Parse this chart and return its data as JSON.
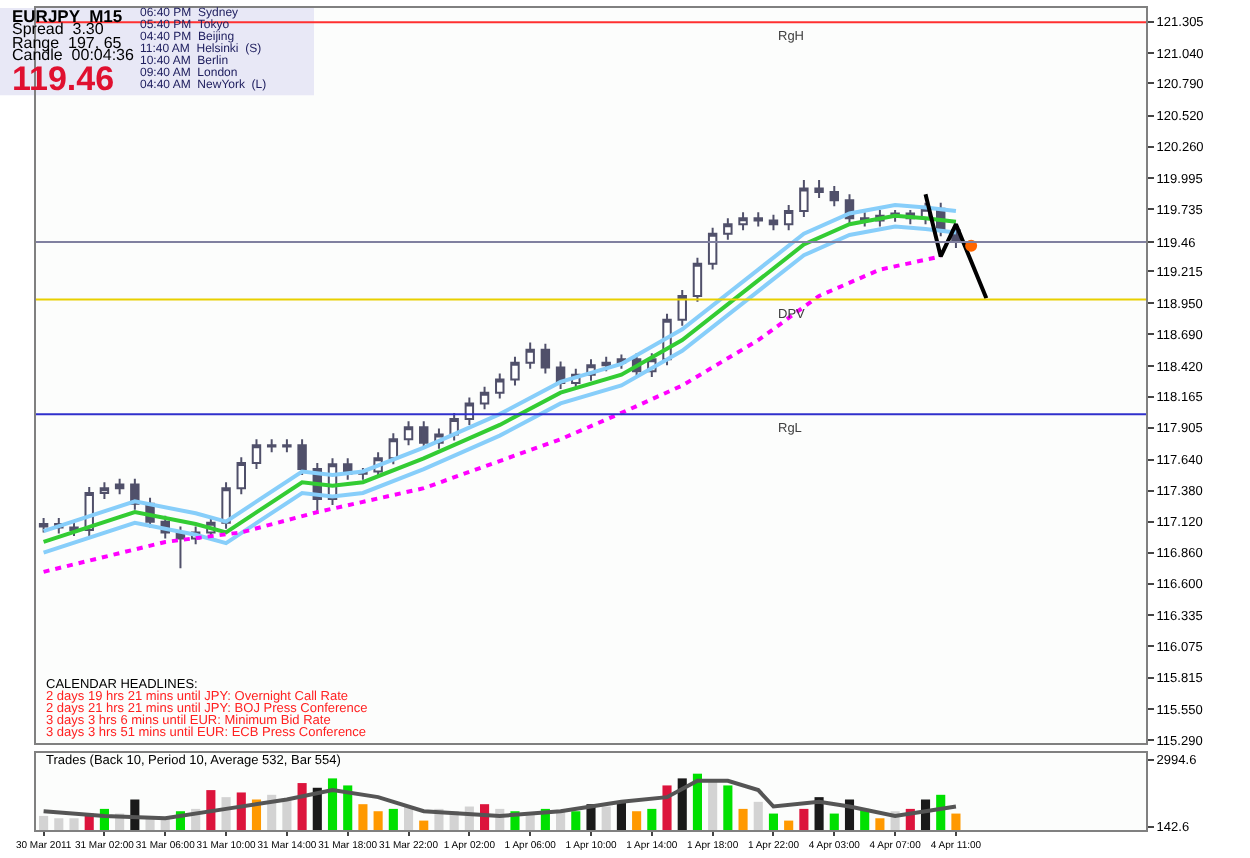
{
  "chart_data": [
    {
      "type": "candlestick",
      "title": "EURJPY  M15",
      "categories": [
        null,
        null,
        null,
        null,
        null,
        null,
        null,
        null,
        null,
        null,
        null,
        null,
        null,
        null,
        null,
        null,
        null,
        null,
        null,
        null,
        null,
        null,
        null,
        null,
        null,
        null,
        null,
        null,
        null,
        null,
        null,
        null,
        null,
        null,
        null,
        null,
        null,
        null,
        null,
        null,
        null,
        null,
        null,
        null,
        null,
        null,
        null,
        null,
        null,
        null,
        null,
        null,
        null,
        null,
        null,
        null,
        null,
        null,
        null,
        null,
        null,
        null,
        null,
        null,
        null,
        null,
        null,
        null,
        null,
        null,
        null,
        null,
        null
      ],
      "ohlc": [
        [
          117.08,
          117.15,
          117.03,
          117.1
        ],
        [
          117.1,
          117.15,
          117.02,
          117.07
        ],
        [
          117.07,
          117.12,
          117.0,
          117.05
        ],
        [
          117.05,
          117.41,
          117.0,
          117.36
        ],
        [
          117.36,
          117.45,
          117.31,
          117.4
        ],
        [
          117.4,
          117.48,
          117.35,
          117.43
        ],
        [
          117.43,
          117.48,
          117.22,
          117.27
        ],
        [
          117.27,
          117.32,
          117.07,
          117.12
        ],
        [
          117.12,
          117.17,
          116.98,
          117.03
        ],
        [
          117.03,
          117.08,
          116.73,
          116.98
        ],
        [
          116.98,
          117.08,
          116.93,
          117.03
        ],
        [
          117.03,
          117.16,
          116.98,
          117.11
        ],
        [
          117.11,
          117.45,
          117.06,
          117.4
        ],
        [
          117.4,
          117.66,
          117.35,
          117.61
        ],
        [
          117.61,
          117.81,
          117.56,
          117.76
        ],
        [
          117.76,
          117.81,
          117.7,
          117.75
        ],
        [
          117.75,
          117.81,
          117.7,
          117.76
        ],
        [
          117.76,
          117.81,
          117.51,
          117.56
        ],
        [
          117.56,
          117.61,
          117.2,
          117.31
        ],
        [
          117.31,
          117.65,
          117.26,
          117.6
        ],
        [
          117.6,
          117.65,
          117.47,
          117.52
        ],
        [
          117.52,
          117.57,
          117.47,
          117.54
        ],
        [
          117.54,
          117.7,
          117.49,
          117.65
        ],
        [
          117.65,
          117.86,
          117.6,
          117.81
        ],
        [
          117.81,
          117.96,
          117.76,
          117.91
        ],
        [
          117.91,
          117.96,
          117.73,
          117.78
        ],
        [
          117.78,
          117.9,
          117.73,
          117.85
        ],
        [
          117.85,
          118.03,
          117.8,
          117.98
        ],
        [
          117.98,
          118.16,
          117.93,
          118.11
        ],
        [
          118.11,
          118.25,
          118.06,
          118.2
        ],
        [
          118.2,
          118.36,
          118.15,
          118.31
        ],
        [
          118.31,
          118.5,
          118.26,
          118.45
        ],
        [
          118.45,
          118.62,
          118.4,
          118.56
        ],
        [
          118.56,
          118.61,
          118.36,
          118.41
        ],
        [
          118.41,
          118.46,
          118.23,
          118.28
        ],
        [
          118.28,
          118.4,
          118.23,
          118.35
        ],
        [
          118.35,
          118.48,
          118.3,
          118.43
        ],
        [
          118.43,
          118.5,
          118.38,
          118.45
        ],
        [
          118.45,
          118.52,
          118.4,
          118.48
        ],
        [
          118.48,
          118.53,
          118.33,
          118.38
        ],
        [
          118.38,
          118.53,
          118.33,
          118.48
        ],
        [
          118.48,
          118.86,
          118.43,
          118.81
        ],
        [
          118.81,
          119.06,
          118.76,
          119.01
        ],
        [
          119.01,
          119.33,
          118.96,
          119.28
        ],
        [
          119.28,
          119.58,
          119.23,
          119.53
        ],
        [
          119.53,
          119.66,
          119.48,
          119.61
        ],
        [
          119.61,
          119.71,
          119.56,
          119.66
        ],
        [
          119.66,
          119.71,
          119.59,
          119.64
        ],
        [
          119.64,
          119.69,
          119.56,
          119.61
        ],
        [
          119.61,
          119.77,
          119.56,
          119.72
        ],
        [
          119.72,
          119.98,
          119.67,
          119.91
        ],
        [
          119.91,
          119.98,
          119.83,
          119.88
        ],
        [
          119.88,
          119.93,
          119.76,
          119.81
        ],
        [
          119.81,
          119.86,
          119.61,
          119.66
        ],
        [
          119.66,
          119.71,
          119.59,
          119.64
        ],
        [
          119.64,
          119.73,
          119.59,
          119.68
        ],
        [
          119.68,
          119.73,
          119.63,
          119.7
        ],
        [
          119.7,
          119.73,
          119.61,
          119.66
        ],
        [
          119.66,
          119.79,
          119.61,
          119.74
        ],
        [
          119.74,
          119.79,
          119.51,
          119.56
        ],
        [
          119.56,
          119.61,
          119.41,
          119.46
        ],
        null,
        null,
        null,
        null,
        null,
        null,
        null,
        null,
        null,
        null,
        null,
        null
      ],
      "series": [
        {
          "type": "line",
          "color": "#33cc33",
          "values": [
            116.95,
            null,
            null,
            null,
            null,
            null,
            117.2,
            null,
            null,
            null,
            117.1,
            null,
            117.03,
            null,
            null,
            null,
            null,
            117.45,
            null,
            117.42,
            null,
            117.45,
            null,
            null,
            null,
            117.65,
            null,
            null,
            null,
            null,
            117.93,
            null,
            null,
            null,
            118.2,
            null,
            null,
            null,
            118.35,
            null,
            null,
            null,
            118.64,
            null,
            null,
            null,
            null,
            119.14,
            null,
            null,
            119.44,
            null,
            null,
            119.61,
            null,
            null,
            119.68,
            null,
            119.66,
            null,
            119.63,
            null,
            null,
            null,
            null,
            null,
            null,
            null,
            null,
            null,
            null,
            null,
            null
          ]
        },
        {
          "type": "line",
          "color": "#87cefa",
          "values": [
            117.04,
            null,
            null,
            null,
            null,
            null,
            117.29,
            null,
            null,
            null,
            117.19,
            null,
            117.12,
            null,
            null,
            null,
            null,
            117.54,
            null,
            117.51,
            null,
            117.54,
            null,
            null,
            null,
            117.74,
            null,
            null,
            null,
            null,
            118.02,
            null,
            null,
            null,
            118.29,
            null,
            null,
            null,
            118.44,
            null,
            null,
            null,
            118.73,
            null,
            null,
            null,
            null,
            119.23,
            null,
            null,
            119.53,
            null,
            null,
            119.7,
            null,
            null,
            119.77,
            null,
            119.75,
            null,
            119.72,
            null,
            null,
            null,
            null,
            null,
            null,
            null,
            null,
            null,
            null,
            null,
            null
          ]
        },
        {
          "type": "line",
          "color": "#87cefa",
          "values": [
            116.86,
            null,
            null,
            null,
            null,
            null,
            117.11,
            null,
            null,
            null,
            117.01,
            null,
            116.94,
            null,
            null,
            null,
            null,
            117.36,
            null,
            117.33,
            null,
            117.36,
            null,
            null,
            null,
            117.56,
            null,
            null,
            null,
            null,
            117.84,
            null,
            null,
            null,
            118.11,
            null,
            null,
            null,
            118.26,
            null,
            null,
            null,
            118.55,
            null,
            null,
            null,
            null,
            119.05,
            null,
            null,
            119.35,
            null,
            null,
            119.52,
            null,
            null,
            119.59,
            null,
            119.57,
            null,
            119.54,
            null,
            null,
            null,
            null,
            null,
            null,
            null,
            null,
            null,
            null,
            null,
            null
          ]
        },
        {
          "type": "line",
          "color": "#ff00ff",
          "line_style": "dotted",
          "values": [
            116.7,
            null,
            null,
            null,
            null,
            null,
            null,
            null,
            116.95,
            null,
            null,
            null,
            null,
            117.03,
            null,
            null,
            null,
            null,
            117.2,
            null,
            null,
            null,
            null,
            null,
            null,
            117.4,
            null,
            null,
            null,
            null,
            null,
            null,
            null,
            null,
            117.81,
            null,
            null,
            null,
            118.03,
            null,
            null,
            null,
            118.26,
            null,
            null,
            null,
            null,
            118.64,
            null,
            null,
            null,
            119.01,
            null,
            null,
            null,
            119.23,
            null,
            null,
            null,
            119.34,
            null,
            null,
            null,
            null,
            null,
            null,
            null,
            null,
            null,
            null,
            null,
            null,
            null
          ]
        },
        {
          "type": "line",
          "color": "#000000",
          "values": [
            null,
            null,
            null,
            null,
            null,
            null,
            null,
            null,
            null,
            null,
            null,
            null,
            null,
            null,
            null,
            null,
            null,
            null,
            null,
            null,
            null,
            null,
            null,
            null,
            null,
            null,
            null,
            null,
            null,
            null,
            null,
            null,
            null,
            null,
            null,
            null,
            null,
            null,
            null,
            null,
            null,
            null,
            null,
            null,
            null,
            null,
            null,
            null,
            null,
            null,
            null,
            null,
            null,
            null,
            null,
            null,
            null,
            null,
            119.86,
            119.34,
            119.61,
            null,
            118.99,
            null,
            null,
            null,
            null,
            null,
            null,
            null,
            null,
            null,
            null
          ]
        },
        {
          "type": "scatter",
          "color": "#ff6600",
          "marker": "circle",
          "values": [
            null,
            null,
            null,
            null,
            null,
            null,
            null,
            null,
            null,
            null,
            null,
            null,
            null,
            null,
            null,
            null,
            null,
            null,
            null,
            null,
            null,
            null,
            null,
            null,
            null,
            null,
            null,
            null,
            null,
            null,
            null,
            null,
            null,
            null,
            null,
            null,
            null,
            null,
            null,
            null,
            null,
            null,
            null,
            null,
            null,
            null,
            null,
            null,
            null,
            null,
            null,
            null,
            null,
            null,
            null,
            null,
            null,
            null,
            null,
            null,
            null,
            119.43,
            null,
            null,
            null,
            null,
            null,
            null,
            null,
            null,
            null,
            null,
            null
          ]
        }
      ],
      "ref_lines": [
        {
          "axis": "y",
          "value": 121.3,
          "label": "RgH",
          "color": "#ff3030"
        },
        {
          "axis": "y",
          "value": 118.98,
          "label": "DPV",
          "color": "#e8d000"
        },
        {
          "axis": "y",
          "value": 118.02,
          "label": "RgL",
          "color": "#3030cc"
        },
        {
          "axis": "y",
          "value": 119.46,
          "color": "#8080a0"
        }
      ],
      "annotations": [
        "Spread  3.30",
        "Range  197, 65",
        "Candle  00:04:36",
        "119.46",
        "06:40 PM  Sydney",
        "05:40 PM  Tokyo",
        "04:40 PM  Beijing",
        "11:40 AM  Helsinki  (S)",
        "10:40 AM  Berlin",
        "09:40 AM  London",
        "04:40 AM  NewYork  (L)",
        "CALENDAR HEADLINES:",
        "2 days 19 hrs 21 mins until JPY: Overnight Call Rate",
        "2 days 21 hrs 21 mins until JPY: BOJ Press Conference",
        "3 days 3 hrs 6 mins until EUR: Minimum Bid Rate",
        "3 days 3 hrs 51 mins until EUR: ECB Press Conference"
      ],
      "ylim": [
        115.27,
        121.42
      ],
      "yticks": [
        121.305,
        {
          "value": 121.04,
          "label": "121.040"
        },
        {
          "value": 120.79,
          "label": "120.790"
        },
        {
          "value": 120.52,
          "label": "120.520"
        },
        {
          "value": 120.26,
          "label": "120.260"
        },
        119.995,
        119.735,
        {
          "value": 119.46,
          "label": "119.46"
        },
        119.215,
        {
          "value": 118.95,
          "label": "118.950"
        },
        {
          "value": 118.69,
          "label": "118.690"
        },
        {
          "value": 118.42,
          "label": "118.420"
        },
        118.165,
        117.905,
        {
          "value": 117.64,
          "label": "117.640"
        },
        {
          "value": 117.38,
          "label": "117.380"
        },
        {
          "value": 117.12,
          "label": "117.120"
        },
        {
          "value": 116.86,
          "label": "116.860"
        },
        {
          "value": 116.6,
          "label": "116.600"
        },
        116.335,
        116.075,
        115.815,
        {
          "value": 115.55,
          "label": "115.550"
        },
        {
          "value": 115.29,
          "label": "115.290"
        }
      ],
      "tick_labels": "y"
    },
    {
      "type": "bar",
      "title": "Trades (Back 10, Period 10, Average 532, Bar 554)",
      "categories": [
        "30 Mar 2011",
        null,
        null,
        null,
        "31 Mar 02:00",
        null,
        null,
        null,
        "31 Mar 06:00",
        null,
        null,
        null,
        "31 Mar 10:00",
        null,
        null,
        null,
        "31 Mar 14:00",
        null,
        null,
        null,
        "31 Mar 18:00",
        null,
        null,
        null,
        "31 Mar 22:00",
        null,
        null,
        null,
        "1 Apr 02:00",
        null,
        null,
        null,
        "1 Apr 06:00",
        null,
        null,
        null,
        "1 Apr 10:00",
        null,
        null,
        null,
        "1 Apr 14:00",
        null,
        null,
        null,
        "1 Apr 18:00",
        null,
        null,
        null,
        "1 Apr 22:00",
        null,
        null,
        null,
        "4 Apr 03:00",
        null,
        null,
        null,
        "4 Apr 07:00",
        null,
        null,
        null,
        "4 Apr 11:00",
        null,
        null,
        null,
        null,
        null,
        null,
        null,
        null,
        null,
        null,
        null,
        null
      ],
      "series": [
        {
          "type": "bar",
          "values": [
            600,
            500,
            500,
            700,
            900,
            700,
            1300,
            600,
            500,
            800,
            900,
            1700,
            1400,
            1600,
            1300,
            1500,
            1300,
            2000,
            1800,
            2200,
            1900,
            1100,
            800,
            900,
            1000,
            400,
            900,
            800,
            1000,
            1100,
            900,
            800,
            700,
            900,
            800,
            800,
            1100,
            1000,
            1200,
            800,
            900,
            1900,
            2200,
            2400,
            2100,
            1900,
            900,
            1200,
            700,
            400,
            900,
            1400,
            700,
            1300,
            900,
            500,
            800,
            900,
            1300,
            1500,
            700,
            null,
            null,
            null,
            null,
            null,
            null,
            null,
            null,
            null,
            null,
            null,
            null
          ],
          "colors": [
            "#d3d3d3",
            "#d3d3d3",
            "#d3d3d3",
            "#dc143c",
            "#00e000",
            "#d3d3d3",
            "#1a1a1a",
            "#d3d3d3",
            "#d3d3d3",
            "#00e000",
            "#d3d3d3",
            "#dc143c",
            "#d3d3d3",
            "#dc143c",
            "#ff9900",
            "#d3d3d3",
            "#d3d3d3",
            "#dc143c",
            "#1a1a1a",
            "#00e000",
            "#00e000",
            "#ff9900",
            "#ff9900",
            "#00e000",
            "#d3d3d3",
            "#ff9900",
            "#d3d3d3",
            "#d3d3d3",
            "#d3d3d3",
            "#dc143c",
            "#d3d3d3",
            "#00e000",
            "#d3d3d3",
            "#00e000",
            "#d3d3d3",
            "#00e000",
            "#1a1a1a",
            "#d3d3d3",
            "#1a1a1a",
            "#ff9900",
            "#00e000",
            "#dc143c",
            "#1a1a1a",
            "#00e000",
            "#d3d3d3",
            "#00e000",
            "#ff9900",
            "#d3d3d3",
            "#00e000",
            "#ff9900",
            "#dc143c",
            "#1a1a1a",
            "#00e000",
            "#1a1a1a",
            "#00e000",
            "#ff9900",
            "#d3d3d3",
            "#dc143c",
            "#1a1a1a",
            "#00e000",
            "#ff9900",
            null,
            null,
            null,
            null,
            null,
            null,
            null,
            null,
            null,
            null,
            null,
            null
          ]
        },
        {
          "type": "line",
          "color": "#555555",
          "values": [
            800,
            null,
            null,
            null,
            600,
            null,
            null,
            null,
            500,
            null,
            null,
            null,
            900,
            null,
            null,
            null,
            1300,
            null,
            null,
            1700,
            null,
            null,
            1400,
            null,
            null,
            800,
            null,
            null,
            null,
            null,
            600,
            null,
            null,
            null,
            800,
            null,
            null,
            null,
            1200,
            null,
            null,
            1400,
            null,
            2100,
            null,
            2100,
            null,
            1700,
            1000,
            null,
            null,
            1200,
            null,
            1000,
            null,
            null,
            600,
            null,
            800,
            null,
            1000,
            null,
            null,
            null,
            null,
            null,
            null,
            null,
            null,
            null,
            null,
            null,
            null
          ]
        }
      ],
      "ylim": [
        0,
        3300
      ],
      "yticks": [
        2994.6,
        142.6
      ]
    }
  ]
}
